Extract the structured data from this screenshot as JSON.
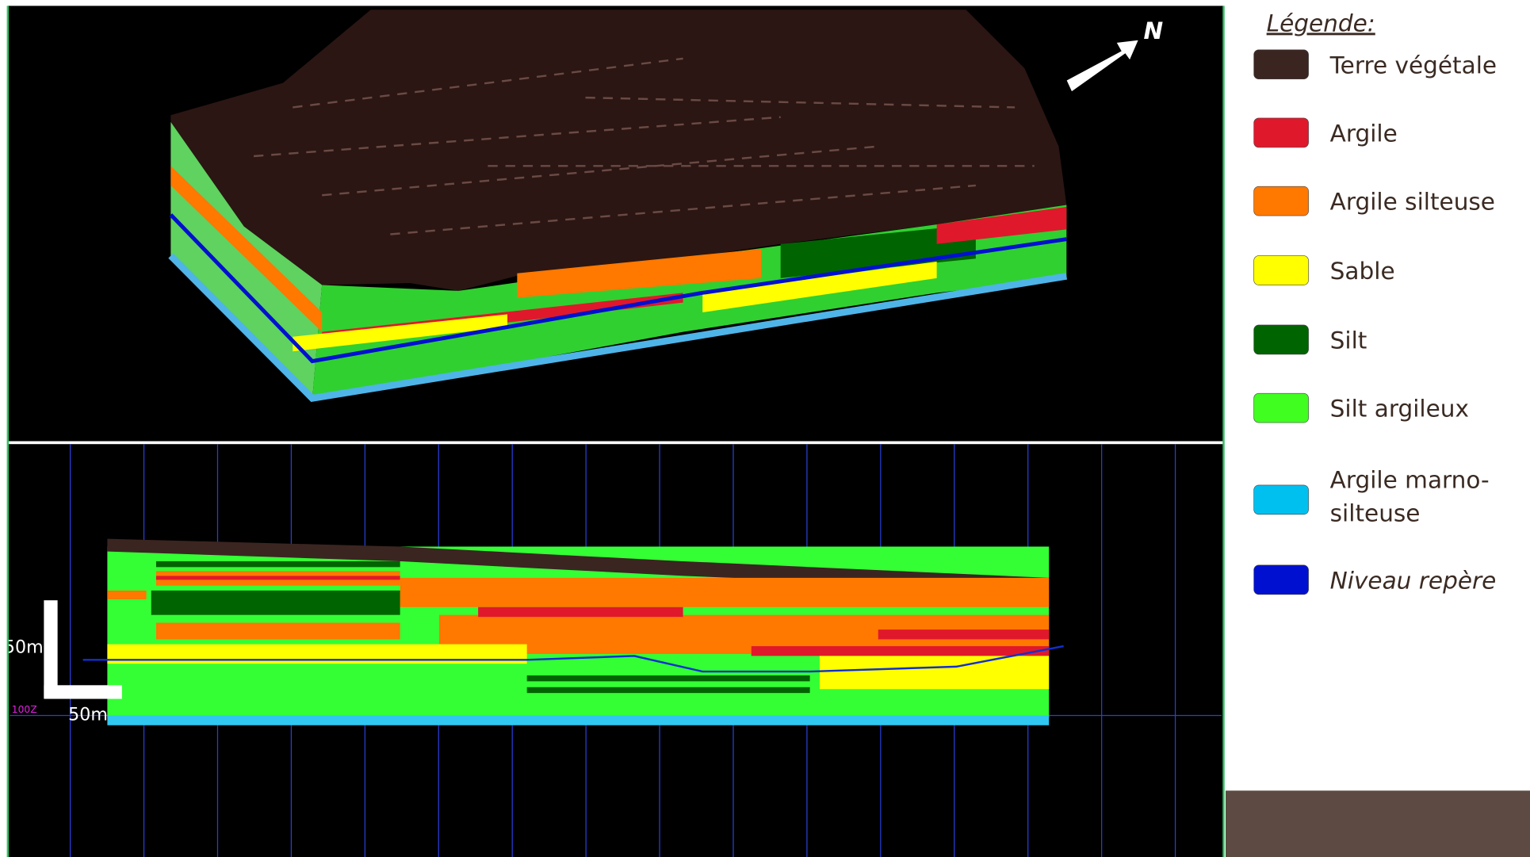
{
  "north_label": "N",
  "scale": {
    "vertical": "50m",
    "horizontal": "50m",
    "datum": "100Z"
  },
  "legend": {
    "title": "Légende:",
    "items": [
      {
        "label": "Terre végétale",
        "color": "#3b2521"
      },
      {
        "label": "Argile",
        "color": "#e0182b"
      },
      {
        "label": "Argile silteuse",
        "color": "#ff7800"
      },
      {
        "label": "Sable",
        "color": "#ffff00"
      },
      {
        "label": "Silt",
        "color": "#006400"
      },
      {
        "label": "Silt argileux",
        "color": "#40ff20"
      },
      {
        "label": [
          "Argile marno-",
          "silteuse"
        ],
        "color": "#00c0f0"
      },
      {
        "label": "Niveau repère",
        "color": "#0010d0",
        "italic": true
      }
    ]
  }
}
